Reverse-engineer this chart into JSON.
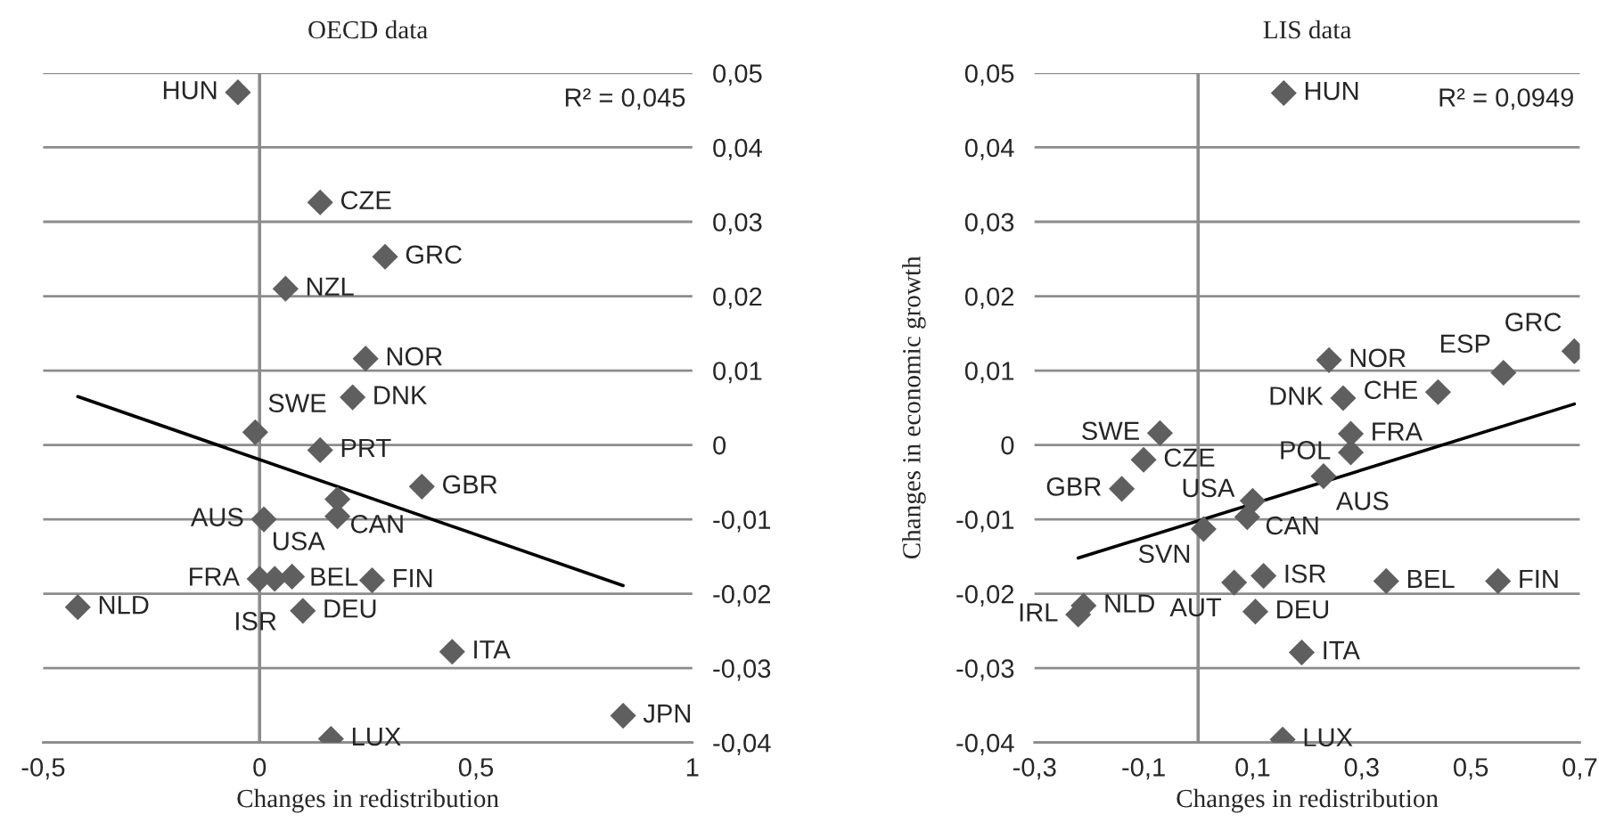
{
  "chart_data": [
    {
      "type": "scatter",
      "title": "OECD data",
      "xlabel": "Changes in redistribution",
      "xlim": [
        -0.5,
        1
      ],
      "xticks": [
        {
          "value": -0.5,
          "label": "-0,5"
        },
        0,
        {
          "value": 0.5,
          "label": "0,5"
        },
        1
      ],
      "ylim": [
        -0.04,
        0.05
      ],
      "yticks": [
        {
          "value": -0.04,
          "label": "-0,04"
        },
        {
          "value": -0.03,
          "label": "-0,03"
        },
        {
          "value": -0.02,
          "label": "-0,02"
        },
        {
          "value": -0.01,
          "label": "-0,01"
        },
        0,
        {
          "value": 0.01,
          "label": "0,01"
        },
        {
          "value": 0.02,
          "label": "0,02"
        },
        {
          "value": 0.03,
          "label": "0,03"
        },
        {
          "value": 0.04,
          "label": "0,04"
        },
        {
          "value": 0.05,
          "label": "0,05"
        }
      ],
      "grid": "y",
      "legend": false,
      "ref_lines": [
        {
          "axis": "x",
          "value": 0,
          "color": "#8c8c8c"
        }
      ],
      "series": [
        {
          "color": "#5f5f5f",
          "marker": "diamond",
          "x": [
            -0.05,
            0.14,
            0.06,
            0.29,
            0.245,
            0.215,
            -0.01,
            0.14,
            0.375,
            0.18,
            0.18,
            0.01,
            0.0,
            0.035,
            0.075,
            0.1,
            0.26,
            -0.42,
            0.445,
            0.84,
            0.165
          ],
          "values": [
            0.0474,
            0.0326,
            0.021,
            0.0253,
            0.0116,
            0.0064,
            0.0017,
            -0.0007,
            -0.0056,
            -0.0073,
            -0.0096,
            -0.01,
            -0.018,
            -0.018,
            -0.0177,
            -0.0223,
            -0.0182,
            -0.0218,
            -0.0278,
            -0.0364,
            -0.0395
          ]
        },
        {
          "type": "line",
          "color": "#000000",
          "x": [
            -0.42,
            0.84
          ],
          "values": [
            0.0065,
            -0.0189
          ]
        }
      ],
      "annotations": [
        {
          "text": "HUN",
          "x": -0.05,
          "y": 0.0474
        },
        {
          "text": "CZE",
          "x": 0.14,
          "y": 0.0326
        },
        {
          "text": "NZL",
          "x": 0.06,
          "y": 0.021
        },
        {
          "text": "GRC",
          "x": 0.29,
          "y": 0.0253
        },
        {
          "text": "NOR",
          "x": 0.245,
          "y": 0.0116
        },
        {
          "text": "DNK",
          "x": 0.215,
          "y": 0.0064
        },
        {
          "text": "SWE",
          "x": -0.01,
          "y": 0.0017
        },
        {
          "text": "PRT",
          "x": 0.14,
          "y": -0.0007
        },
        {
          "text": "GBR",
          "x": 0.375,
          "y": -0.0056
        },
        {
          "text": "CAN",
          "x": 0.18,
          "y": -0.0073
        },
        {
          "text": "USA",
          "x": 0.18,
          "y": -0.0096
        },
        {
          "text": "AUS",
          "x": 0.01,
          "y": -0.01
        },
        {
          "text": "FRA",
          "x": 0.0,
          "y": -0.018
        },
        {
          "text": "BEL",
          "x": 0.035,
          "y": -0.018
        },
        {
          "text": "ISR",
          "x": 0.075,
          "y": -0.0177
        },
        {
          "text": "DEU",
          "x": 0.1,
          "y": -0.0223
        },
        {
          "text": "FIN",
          "x": 0.26,
          "y": -0.0182
        },
        {
          "text": "NLD",
          "x": -0.42,
          "y": -0.0218
        },
        {
          "text": "ITA",
          "x": 0.445,
          "y": -0.0278
        },
        {
          "text": "JPN",
          "x": 0.84,
          "y": -0.0364
        },
        {
          "text": "LUX",
          "x": 0.165,
          "y": -0.0395
        },
        "R² = 0,045"
      ]
    },
    {
      "type": "scatter",
      "title": "LIS data",
      "xlabel": "Changes in redistribution",
      "ylabel": "Changes in economic growth",
      "xlim": [
        -0.3,
        0.7
      ],
      "xticks": [
        {
          "value": -0.3,
          "label": "-0,3"
        },
        {
          "value": -0.1,
          "label": "-0,1"
        },
        {
          "value": 0.1,
          "label": "0,1"
        },
        {
          "value": 0.3,
          "label": "0,3"
        },
        {
          "value": 0.5,
          "label": "0,5"
        },
        {
          "value": 0.7,
          "label": "0,7"
        }
      ],
      "ylim": [
        -0.04,
        0.05
      ],
      "yticks": [
        {
          "value": -0.04,
          "label": "-0,04"
        },
        {
          "value": -0.03,
          "label": "-0,03"
        },
        {
          "value": -0.02,
          "label": "-0,02"
        },
        {
          "value": -0.01,
          "label": "-0,01"
        },
        0,
        {
          "value": 0.01,
          "label": "0,01"
        },
        {
          "value": 0.02,
          "label": "0,02"
        },
        {
          "value": 0.03,
          "label": "0,03"
        },
        {
          "value": 0.04,
          "label": "0,04"
        },
        {
          "value": 0.05,
          "label": "0,05"
        }
      ],
      "grid": "y",
      "legend": false,
      "ref_lines": [
        {
          "axis": "x",
          "value": 0,
          "color": "#8c8c8c"
        }
      ],
      "series": [
        {
          "color": "#5f5f5f",
          "marker": "diamond",
          "x": [
            0.157,
            0.24,
            0.69,
            0.56,
            0.44,
            0.266,
            -0.07,
            0.28,
            0.28,
            -0.1,
            0.23,
            -0.14,
            0.1,
            0.09,
            0.01,
            0.12,
            0.066,
            0.345,
            0.55,
            -0.21,
            -0.22,
            0.105,
            0.19,
            0.155
          ],
          "values": [
            0.0473,
            0.0114,
            0.0126,
            0.0097,
            0.0071,
            0.0063,
            0.0016,
            0.0015,
            -0.001,
            -0.002,
            -0.0042,
            -0.0059,
            -0.0075,
            -0.0097,
            -0.0113,
            -0.0176,
            -0.0185,
            -0.0183,
            -0.0183,
            -0.0216,
            -0.0228,
            -0.0224,
            -0.0279,
            -0.0396
          ]
        },
        {
          "type": "line",
          "color": "#000000",
          "x": [
            -0.22,
            0.69
          ],
          "values": [
            -0.0152,
            0.0055
          ]
        }
      ],
      "annotations": [
        {
          "text": "HUN",
          "x": 0.157,
          "y": 0.0473
        },
        {
          "text": "NOR",
          "x": 0.24,
          "y": 0.0114
        },
        {
          "text": "GRC",
          "x": 0.69,
          "y": 0.0126
        },
        {
          "text": "ESP",
          "x": 0.56,
          "y": 0.0097
        },
        {
          "text": "CHE",
          "x": 0.44,
          "y": 0.0071
        },
        {
          "text": "DNK",
          "x": 0.266,
          "y": 0.0063
        },
        {
          "text": "SWE",
          "x": -0.07,
          "y": 0.0016
        },
        {
          "text": "FRA",
          "x": 0.28,
          "y": 0.0015
        },
        {
          "text": "POL",
          "x": 0.28,
          "y": -0.001
        },
        {
          "text": "CZE",
          "x": -0.1,
          "y": -0.002
        },
        {
          "text": "AUS",
          "x": 0.23,
          "y": -0.0042
        },
        {
          "text": "GBR",
          "x": -0.14,
          "y": -0.0059
        },
        {
          "text": "CAN",
          "x": 0.1,
          "y": -0.0075
        },
        {
          "text": "USA",
          "x": 0.09,
          "y": -0.0097
        },
        {
          "text": "SVN",
          "x": 0.01,
          "y": -0.0113
        },
        {
          "text": "ISR",
          "x": 0.12,
          "y": -0.0176
        },
        {
          "text": "AUT",
          "x": 0.066,
          "y": -0.0185
        },
        {
          "text": "BEL",
          "x": 0.345,
          "y": -0.0183
        },
        {
          "text": "FIN",
          "x": 0.55,
          "y": -0.0183
        },
        {
          "text": "NLD",
          "x": -0.21,
          "y": -0.0216
        },
        {
          "text": "IRL",
          "x": -0.22,
          "y": -0.0228
        },
        {
          "text": "DEU",
          "x": 0.105,
          "y": -0.0224
        },
        {
          "text": "ITA",
          "x": 0.19,
          "y": -0.0279
        },
        {
          "text": "LUX",
          "x": 0.155,
          "y": -0.0396
        },
        "R² = 0,0949"
      ]
    }
  ]
}
